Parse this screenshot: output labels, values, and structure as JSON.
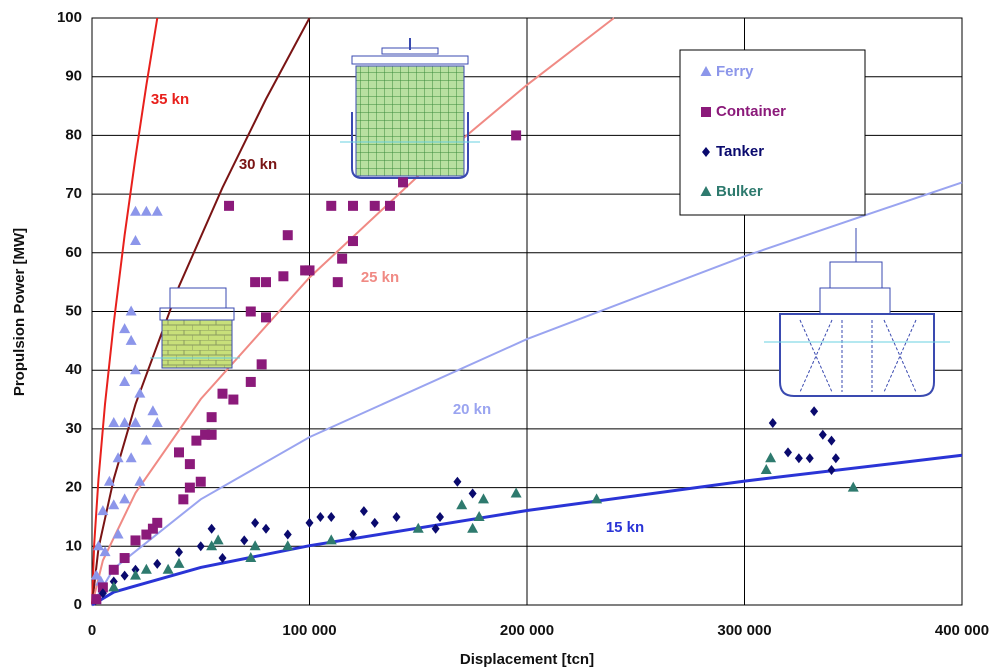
{
  "chart_data": {
    "type": "scatter",
    "x_label": "Displacement [tcn]",
    "y_label": "Propulsion Power [MW]",
    "xlim": [
      0,
      400000
    ],
    "ylim": [
      0,
      100
    ],
    "xticks": [
      0,
      {
        "value": 100000,
        "label": "100 000"
      },
      {
        "value": 200000,
        "label": "200 000"
      },
      {
        "value": 300000,
        "label": "300 000"
      },
      {
        "value": 400000,
        "label": "400 000"
      }
    ],
    "yticks": [
      0,
      10,
      20,
      30,
      40,
      50,
      60,
      70,
      80,
      90,
      100
    ],
    "grid": true,
    "legend": "upper right",
    "lines": [
      {
        "name": "35 kn",
        "color": "#e8201c",
        "x": [
          0,
          1000,
          3000,
          6000,
          10000,
          15000,
          20000,
          25000,
          30000
        ],
        "values": [
          0,
          10.4,
          21.5,
          34.2,
          48.1,
          63.0,
          76.3,
          88.6,
          100
        ]
      },
      {
        "name": "30 kn",
        "color": "#7a1414",
        "x": [
          0,
          3000,
          10000,
          20000,
          40000,
          60000,
          80000,
          100000
        ],
        "values": [
          0,
          9.7,
          21.5,
          34.2,
          54.3,
          71.1,
          86.2,
          100
        ]
      },
      {
        "name": "25 kn",
        "color": "#f08a84",
        "x": [
          0,
          5000,
          20000,
          50000,
          100000,
          150000,
          200000,
          240000
        ],
        "values": [
          0,
          7.6,
          19.1,
          35.1,
          55.8,
          73.1,
          88.6,
          100
        ]
      },
      {
        "name": "20 kn",
        "color": "#9aa4f0",
        "x": [
          0,
          10000,
          50000,
          100000,
          200000,
          300000,
          400000
        ],
        "values": [
          0,
          6.2,
          18.0,
          28.6,
          45.3,
          59.4,
          72.0
        ]
      },
      {
        "name": "15 kn",
        "color": "#2a34d6",
        "x": [
          0,
          10000,
          50000,
          100000,
          200000,
          300000,
          400000
        ],
        "values": [
          0,
          2.2,
          6.4,
          10.1,
          16.1,
          21.1,
          25.5
        ]
      }
    ],
    "series": [
      {
        "name": "Ferry",
        "color": "#8c96ea",
        "marker": "triangle",
        "x": [
          20000,
          25000,
          30000,
          20000,
          18000,
          15000,
          18000,
          20000,
          15000,
          22000,
          10000,
          15000,
          20000,
          28000,
          25000,
          8000,
          12000,
          18000,
          5000,
          10000,
          3000,
          6000,
          12000,
          15000,
          2000,
          4000,
          22000,
          30000
        ],
        "values": [
          67,
          67,
          67,
          62,
          50,
          47,
          45,
          40,
          38,
          36,
          31,
          31,
          31,
          33,
          28,
          21,
          25,
          25,
          16,
          17,
          10,
          9,
          12,
          18,
          5,
          4,
          21,
          31
        ]
      },
      {
        "name": "Container",
        "color": "#8b1a7a",
        "marker": "square",
        "x": [
          195000,
          63000,
          110000,
          120000,
          130000,
          137000,
          143000,
          90000,
          98000,
          100000,
          88000,
          115000,
          120000,
          113000,
          75000,
          80000,
          73000,
          80000,
          60000,
          65000,
          73000,
          78000,
          55000,
          40000,
          45000,
          48000,
          52000,
          55000,
          50000,
          42000,
          45000,
          30000,
          25000,
          20000,
          28000,
          15000,
          10000,
          5000,
          2000
        ],
        "values": [
          80,
          68,
          68,
          68,
          68,
          68,
          72,
          63,
          57,
          57,
          56,
          59,
          62,
          55,
          55,
          55,
          50,
          49,
          36,
          35,
          38,
          41,
          32,
          26,
          24,
          28,
          29,
          29,
          21,
          18,
          20,
          14,
          12,
          11,
          13,
          8,
          6,
          3,
          1
        ]
      },
      {
        "name": "Tanker",
        "color": "#0a0a6e",
        "marker": "diamond",
        "x": [
          313000,
          332000,
          336000,
          340000,
          320000,
          325000,
          330000,
          342000,
          340000,
          168000,
          175000,
          160000,
          158000,
          140000,
          125000,
          130000,
          105000,
          100000,
          110000,
          90000,
          80000,
          75000,
          55000,
          50000,
          40000,
          30000,
          20000,
          15000,
          10000,
          5000,
          60000,
          70000,
          120000
        ],
        "values": [
          31,
          33,
          29,
          28,
          26,
          25,
          25,
          25,
          23,
          21,
          19,
          15,
          13,
          15,
          16,
          14,
          15,
          14,
          15,
          12,
          13,
          14,
          13,
          10,
          9,
          7,
          6,
          5,
          4,
          2,
          8,
          11,
          12
        ]
      },
      {
        "name": "Bulker",
        "color": "#2e7a6e",
        "marker": "triangle",
        "x": [
          310000,
          312000,
          350000,
          232000,
          195000,
          180000,
          170000,
          178000,
          175000,
          150000,
          110000,
          90000,
          75000,
          73000,
          55000,
          58000,
          40000,
          35000,
          25000,
          20000,
          10000
        ],
        "values": [
          23,
          25,
          20,
          18,
          19,
          18,
          17,
          15,
          13,
          13,
          11,
          10,
          10,
          8,
          10,
          11,
          7,
          6,
          6,
          5,
          3
        ]
      }
    ]
  }
}
